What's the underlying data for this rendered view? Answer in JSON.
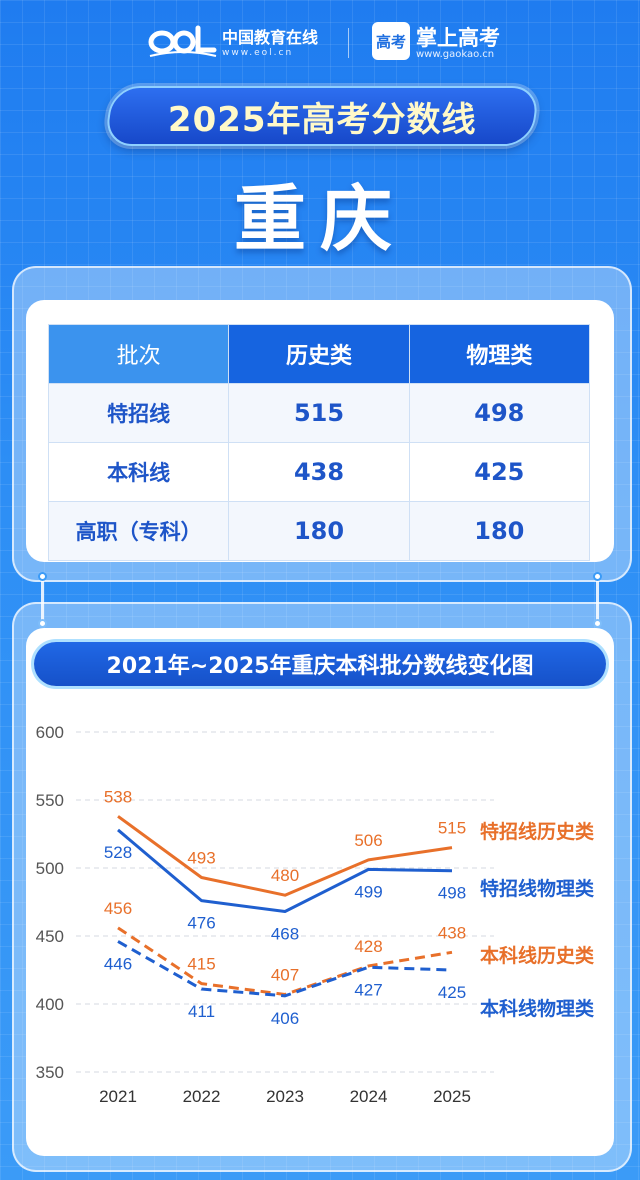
{
  "header": {
    "brand1_name": "中国教育在线",
    "brand1_url": "www.eol.cn",
    "brand2_logo_text": "高考",
    "brand2_name": "掌上高考",
    "brand2_url": "www.gaokao.cn"
  },
  "title": "2025年高考分数线",
  "city": "重庆",
  "table": {
    "headers": [
      "批次",
      "历史类",
      "物理类"
    ],
    "rows": [
      {
        "label": "特招线",
        "history": "515",
        "physics": "498"
      },
      {
        "label": "本科线",
        "history": "438",
        "physics": "425"
      },
      {
        "label": "高职（专科）",
        "history": "180",
        "physics": "180"
      }
    ]
  },
  "colors": {
    "background": "#2d8ef5",
    "history": "#e8702a",
    "physics": "#1f5fcf",
    "accent_dark": "#1664e0"
  },
  "chart_data": {
    "type": "line",
    "title": "2021年~2025年重庆本科批分数线变化图",
    "x": [
      "2021",
      "2022",
      "2023",
      "2024",
      "2025"
    ],
    "ylim": [
      350,
      600
    ],
    "yticks": [
      350,
      400,
      450,
      500,
      550,
      600
    ],
    "grid": true,
    "legend_position": "right, inline at line ends",
    "series": [
      {
        "name": "特招线历史类",
        "values": [
          538,
          493,
          480,
          506,
          515
        ],
        "color": "#e8702a",
        "style": "solid"
      },
      {
        "name": "特招线物理类",
        "values": [
          528,
          476,
          468,
          499,
          498
        ],
        "color": "#1f5fcf",
        "style": "solid"
      },
      {
        "name": "本科线历史类",
        "values": [
          456,
          415,
          407,
          428,
          438
        ],
        "color": "#e8702a",
        "style": "dashed"
      },
      {
        "name": "本科线物理类",
        "values": [
          446,
          411,
          406,
          427,
          425
        ],
        "color": "#1f5fcf",
        "style": "dashed"
      }
    ]
  }
}
